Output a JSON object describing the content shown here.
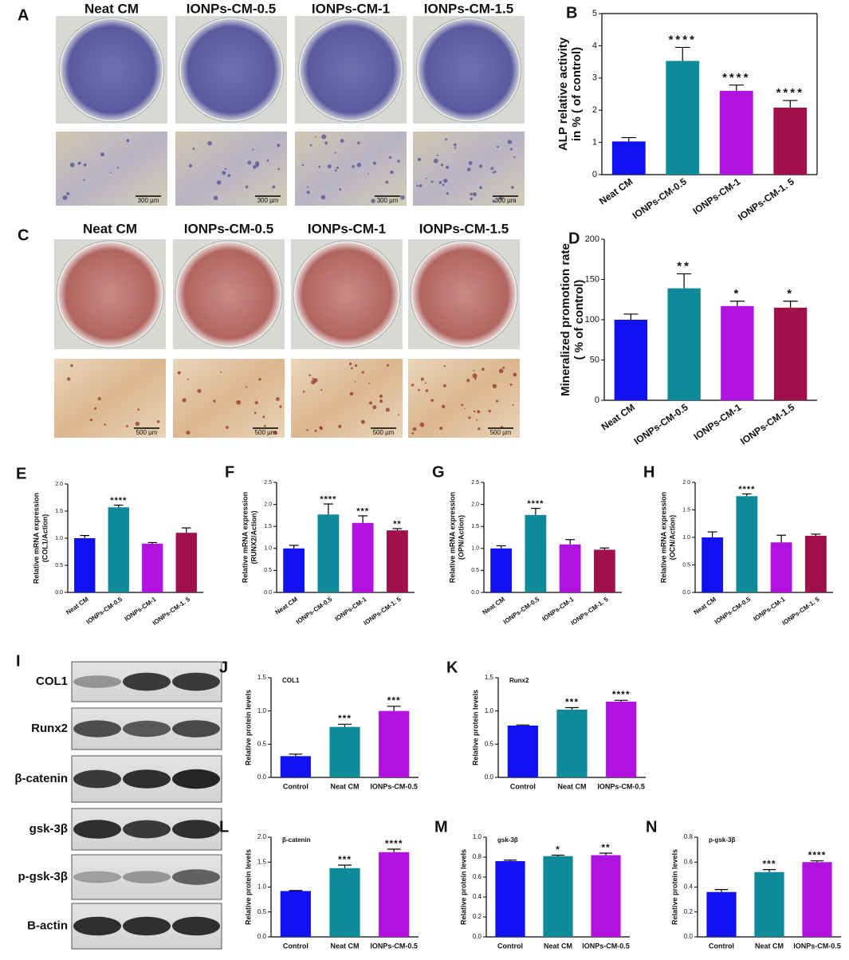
{
  "photos": [
    {
      "letter": "A",
      "columns": [
        "Neat CM",
        "IONPs-CM-0.5",
        "IONPs-CM-1",
        "IONPs-CM-1.5"
      ],
      "scale_bar": "300 µm"
    },
    {
      "letter": "C",
      "columns": [
        "Neat CM",
        "IONPs-CM-0.5",
        "IONPs-CM-1",
        "IONPs-CM-1.5"
      ],
      "scale_bar": "500 µm"
    }
  ],
  "blot": {
    "letter": "I",
    "rows": [
      "COL1",
      "Runx2",
      "β-catenin",
      "gsk-3β",
      "p-gsk-3β",
      "B-actin"
    ]
  },
  "chart_data": [
    {
      "type": "bar",
      "panel": "B",
      "ylabel": [
        "ALP relative activity",
        "in % ( of control)"
      ],
      "frame": true,
      "categories": [
        "Neat CM",
        "IONPs-CM-0.5",
        "IONPs-CM-1",
        "IONPs-CM-1. 5"
      ],
      "values": [
        1.03,
        3.53,
        2.6,
        2.08
      ],
      "errors": [
        0.12,
        0.42,
        0.18,
        0.22
      ],
      "annotations": [
        null,
        "****",
        "****",
        "****"
      ],
      "colors": [
        "#1010f0",
        "#0e8a98",
        "#b012e0",
        "#a0104a"
      ],
      "ylim": [
        0,
        5
      ],
      "yticks": [
        0,
        1,
        2,
        3,
        4,
        5
      ]
    },
    {
      "type": "bar",
      "panel": "D",
      "ylabel": [
        "Mineralized promotion rate",
        "( % of control)"
      ],
      "categories": [
        "Neat CM",
        "IONPs-CM-0.5",
        "IONPs-CM-1",
        "IONPs-CM-1.5"
      ],
      "values": [
        100,
        139,
        117,
        115
      ],
      "errors": [
        7,
        18,
        6,
        8
      ],
      "annotations": [
        null,
        "**",
        "*",
        "*"
      ],
      "colors": [
        "#1010f0",
        "#0e8a98",
        "#b012e0",
        "#a0104a"
      ],
      "ylim": [
        0,
        200
      ],
      "yticks": [
        0,
        50,
        100,
        150,
        200
      ]
    },
    {
      "type": "bar",
      "panel": "E",
      "ylabel": [
        "Relative mRNA expression",
        "(COL1/Action)"
      ],
      "categories": [
        "Neat CM",
        "IONPs-CM-0.5",
        "IONPs-CM-1",
        "IONPs-CM-1. 5"
      ],
      "values": [
        1.0,
        1.57,
        0.9,
        1.1
      ],
      "errors": [
        0.05,
        0.04,
        0.02,
        0.09
      ],
      "annotations": [
        null,
        "****",
        null,
        null
      ],
      "colors": [
        "#1010f0",
        "#0e8a98",
        "#b012e0",
        "#a0104a"
      ],
      "ylim": [
        0,
        2
      ],
      "yticks": [
        {
          "value": 0,
          "label": "0.0"
        },
        {
          "value": 0.5,
          "label": "0.5"
        },
        {
          "value": 1,
          "label": "1.0"
        },
        {
          "value": 1.5,
          "label": "1.5"
        },
        {
          "value": 2,
          "label": "2.0"
        }
      ]
    },
    {
      "type": "bar",
      "panel": "F",
      "ylabel": [
        "Relative mRNA expression",
        "(RUNX2/Action)"
      ],
      "categories": [
        "Neat CM",
        "IONPs-CM-0.5",
        "IONPs-CM-1",
        "IONPs-CM-1. 5"
      ],
      "values": [
        1.0,
        1.77,
        1.58,
        1.41
      ],
      "errors": [
        0.07,
        0.24,
        0.16,
        0.04
      ],
      "annotations": [
        null,
        "****",
        "***",
        "**"
      ],
      "colors": [
        "#1010f0",
        "#0e8a98",
        "#b012e0",
        "#a0104a"
      ],
      "ylim": [
        0,
        2.5
      ],
      "yticks": [
        {
          "value": 0,
          "label": "0.0"
        },
        {
          "value": 0.5,
          "label": "0.5"
        },
        {
          "value": 1,
          "label": "1.0"
        },
        {
          "value": 1.5,
          "label": "1.5"
        },
        {
          "value": 2,
          "label": "2.0"
        },
        {
          "value": 2.5,
          "label": "2.5"
        }
      ]
    },
    {
      "type": "bar",
      "panel": "G",
      "ylabel": [
        "Relative mRNA expression",
        "(OPN/Action)"
      ],
      "categories": [
        "Neat CM",
        "IONPs-CM-0.5",
        "IONPs-CM-1",
        "IONPs-CM-1. 5"
      ],
      "values": [
        1.0,
        1.76,
        1.09,
        0.97
      ],
      "errors": [
        0.06,
        0.15,
        0.11,
        0.04
      ],
      "annotations": [
        null,
        "****",
        null,
        null
      ],
      "colors": [
        "#1010f0",
        "#0e8a98",
        "#b012e0",
        "#a0104a"
      ],
      "ylim": [
        0,
        2.5
      ],
      "yticks": [
        {
          "value": 0,
          "label": "0.0"
        },
        {
          "value": 0.5,
          "label": "0.5"
        },
        {
          "value": 1,
          "label": "1.0"
        },
        {
          "value": 1.5,
          "label": "1.5"
        },
        {
          "value": 2,
          "label": "2.0"
        },
        {
          "value": 2.5,
          "label": "2.5"
        }
      ]
    },
    {
      "type": "bar",
      "panel": "H",
      "ylabel": [
        "Relative mRNA expression",
        "(OCN/Action)"
      ],
      "categories": [
        "Neat CM",
        "IONPs-CM-0.5",
        "IONPs-CM-1",
        "IONPs-CM-1. 5"
      ],
      "values": [
        1.0,
        1.75,
        0.91,
        1.03
      ],
      "errors": [
        0.1,
        0.04,
        0.13,
        0.03
      ],
      "annotations": [
        null,
        "****",
        null,
        null
      ],
      "colors": [
        "#1010f0",
        "#0e8a98",
        "#b012e0",
        "#a0104a"
      ],
      "ylim": [
        0,
        2
      ],
      "yticks": [
        {
          "value": 0,
          "label": "0.0"
        },
        {
          "value": 0.5,
          "label": "0.5"
        },
        {
          "value": 1,
          "label": "1.0"
        },
        {
          "value": 1.5,
          "label": "1.5"
        },
        {
          "value": 2,
          "label": "2.0"
        }
      ]
    },
    {
      "type": "bar",
      "panel": "J",
      "title": "COL1",
      "ylabel": [
        "Relative protein levels"
      ],
      "categories": [
        "Control",
        "Neat CM",
        "IONPs-CM-0.5"
      ],
      "values": [
        0.32,
        0.76,
        1.0
      ],
      "errors": [
        0.03,
        0.04,
        0.07
      ],
      "annotations": [
        null,
        "***",
        "***"
      ],
      "colors": [
        "#1010f0",
        "#0e8a98",
        "#b012e0"
      ],
      "ylim": [
        0,
        1.5
      ],
      "yticks": [
        {
          "value": 0,
          "label": "0.0"
        },
        {
          "value": 0.5,
          "label": "0.5"
        },
        {
          "value": 1,
          "label": "1.0"
        },
        {
          "value": 1.5,
          "label": "1.5"
        }
      ]
    },
    {
      "type": "bar",
      "panel": "K",
      "title": "Runx2",
      "ylabel": [
        "Relative protein levels"
      ],
      "categories": [
        "Control",
        "Neat CM",
        "IONPs-CM-0.5"
      ],
      "values": [
        0.78,
        1.02,
        1.14
      ],
      "errors": [
        0.01,
        0.03,
        0.02
      ],
      "annotations": [
        null,
        "***",
        "****"
      ],
      "colors": [
        "#1010f0",
        "#0e8a98",
        "#b012e0"
      ],
      "ylim": [
        0,
        1.5
      ],
      "yticks": [
        {
          "value": 0,
          "label": "0.0"
        },
        {
          "value": 0.5,
          "label": "0.5"
        },
        {
          "value": 1,
          "label": "1.0"
        },
        {
          "value": 1.5,
          "label": "1.5"
        }
      ]
    },
    {
      "type": "bar",
      "panel": "L",
      "title": "β-catenin",
      "ylabel": [
        "Relative protein levels"
      ],
      "categories": [
        "Control",
        "Neat CM",
        "IONPs-CM-0.5"
      ],
      "values": [
        0.92,
        1.38,
        1.7
      ],
      "errors": [
        0.01,
        0.06,
        0.06
      ],
      "annotations": [
        null,
        "***",
        "****"
      ],
      "colors": [
        "#1010f0",
        "#0e8a98",
        "#b012e0"
      ],
      "ylim": [
        0,
        2
      ],
      "yticks": [
        {
          "value": 0,
          "label": "0.0"
        },
        {
          "value": 0.5,
          "label": "0.5"
        },
        {
          "value": 1,
          "label": "1.0"
        },
        {
          "value": 1.5,
          "label": "1.5"
        },
        {
          "value": 2,
          "label": "2.0"
        }
      ]
    },
    {
      "type": "bar",
      "panel": "M",
      "title": "gsk-3β",
      "ylabel": [
        "Relative protein levels"
      ],
      "categories": [
        "Control",
        "Neat CM",
        "IONPs-CM-0.5"
      ],
      "values": [
        0.76,
        0.81,
        0.82
      ],
      "errors": [
        0.01,
        0.01,
        0.02
      ],
      "annotations": [
        null,
        "*",
        "**"
      ],
      "colors": [
        "#1010f0",
        "#0e8a98",
        "#b012e0"
      ],
      "ylim": [
        0,
        1
      ],
      "yticks": [
        {
          "value": 0,
          "label": "0.0"
        },
        {
          "value": 0.2,
          "label": "0.2"
        },
        {
          "value": 0.4,
          "label": "0.4"
        },
        {
          "value": 0.6,
          "label": "0.6"
        },
        {
          "value": 0.8,
          "label": "0.8"
        },
        {
          "value": 1,
          "label": "1.0"
        }
      ]
    },
    {
      "type": "bar",
      "panel": "N",
      "title": "p-gsk-3β",
      "ylabel": [
        "Relative protein levels"
      ],
      "categories": [
        "Control",
        "Neat CM",
        "IONPs-CM-0.5"
      ],
      "values": [
        0.36,
        0.52,
        0.6
      ],
      "errors": [
        0.02,
        0.02,
        0.01
      ],
      "annotations": [
        null,
        "***",
        "****"
      ],
      "colors": [
        "#1010f0",
        "#0e8a98",
        "#b012e0"
      ],
      "ylim": [
        0,
        0.8
      ],
      "yticks": [
        {
          "value": 0,
          "label": "0.0"
        },
        {
          "value": 0.2,
          "label": "0.2"
        },
        {
          "value": 0.4,
          "label": "0.4"
        },
        {
          "value": 0.6,
          "label": "0.6"
        },
        {
          "value": 0.8,
          "label": "0.8"
        }
      ]
    }
  ]
}
